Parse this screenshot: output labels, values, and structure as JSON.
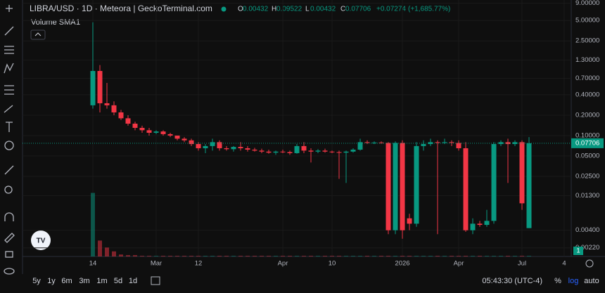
{
  "chart_data": {
    "type": "candlestick",
    "title": "LIBRA/USD · 1D · Meteora | GeckoTerminal.com",
    "ohlc_letters": [
      "O",
      "H",
      "L",
      "C"
    ],
    "ohlc_values": [
      0.00432,
      0.09522,
      0.00432,
      0.07706
    ],
    "change": {
      "value": 0.07274,
      "label": "+0.07274"
    },
    "change_pct": {
      "value": 1685.77,
      "label": "(+1,685.77%)"
    },
    "volume_title": "Volume SMA",
    "volume_param": 1,
    "last_price": 0.07706,
    "log": true,
    "grid": true,
    "up_color": "#089981",
    "down_color": "#f23645",
    "ylim": [
      0.00164,
      10.05
    ],
    "yticks": [
      {
        "value": 9,
        "label": "9.00000"
      },
      {
        "value": 5,
        "label": "5.00000"
      },
      {
        "value": 2.5,
        "label": "2.50000"
      },
      {
        "value": 1.3,
        "label": "1.30000"
      },
      {
        "value": 0.7,
        "label": "0.70000"
      },
      {
        "value": 0.4,
        "label": "0.40000"
      },
      {
        "value": 0.2,
        "label": "0.20000"
      },
      {
        "value": 0.1,
        "label": "0.10000"
      },
      {
        "value": 0.05,
        "label": "0.05000"
      },
      {
        "value": 0.025,
        "label": "0.02500"
      },
      {
        "value": 0.013,
        "label": "0.01300"
      },
      {
        "value": 0.004,
        "label": "0.00400"
      },
      {
        "value": 0.0022,
        "label": "0.00220"
      }
    ],
    "categories": [
      "14",
      null,
      null,
      null,
      null,
      null,
      null,
      null,
      null,
      "Mar",
      null,
      null,
      null,
      null,
      null,
      "12",
      null,
      null,
      null,
      null,
      null,
      null,
      null,
      null,
      null,
      null,
      null,
      "Apr",
      null,
      null,
      null,
      null,
      null,
      null,
      "10",
      null,
      null,
      null,
      null,
      null,
      null,
      null,
      null,
      null,
      "2026",
      null,
      null,
      null,
      null,
      null,
      null,
      null,
      "Apr",
      null,
      null,
      null,
      null,
      null,
      null,
      null,
      null,
      "Jul",
      null,
      null,
      null,
      null,
      null,
      "4"
    ],
    "open": [
      0.28,
      0.9,
      0.3,
      0.28,
      0.22,
      0.18,
      0.15,
      0.13,
      0.12,
      0.11,
      0.115,
      0.105,
      0.1,
      0.09,
      0.085,
      0.075,
      0.065,
      0.07,
      0.08,
      0.065,
      0.063,
      0.068,
      0.065,
      0.062,
      0.06,
      0.058,
      0.056,
      0.058,
      0.057,
      0.055,
      0.07,
      0.06,
      0.058,
      0.06,
      0.058,
      0.057,
      0.056,
      0.058,
      0.062,
      0.08,
      0.078,
      0.079,
      0.078,
      0.004,
      0.078,
      0.006,
      0.005,
      0.07,
      0.075,
      0.08,
      0.078,
      0.08,
      0.078,
      0.065,
      0.004,
      0.005,
      0.0048,
      0.0055,
      0.075,
      0.08,
      0.075,
      0.08,
      0.0043,
      null,
      null,
      null,
      null,
      null
    ],
    "high": [
      4.7,
      1.1,
      0.6,
      0.32,
      0.24,
      0.2,
      0.16,
      0.14,
      0.13,
      0.12,
      0.12,
      0.11,
      0.1,
      0.095,
      0.09,
      0.08,
      0.075,
      0.09,
      0.085,
      0.07,
      0.07,
      0.08,
      0.07,
      0.066,
      0.064,
      0.062,
      0.06,
      0.062,
      0.06,
      0.075,
      0.08,
      0.065,
      0.063,
      0.064,
      0.06,
      0.06,
      0.06,
      0.065,
      0.09,
      0.085,
      0.082,
      0.082,
      0.08,
      0.082,
      0.085,
      0.007,
      0.08,
      0.085,
      0.09,
      0.085,
      0.09,
      0.085,
      0.085,
      0.08,
      0.006,
      0.0055,
      0.008,
      0.08,
      0.085,
      0.09,
      0.085,
      0.085,
      0.095,
      null,
      null,
      null,
      null,
      null
    ],
    "low": [
      0.25,
      0.22,
      0.25,
      0.2,
      0.17,
      0.14,
      0.12,
      0.11,
      0.1,
      0.105,
      0.1,
      0.095,
      0.085,
      0.08,
      0.07,
      0.06,
      0.055,
      0.06,
      0.06,
      0.06,
      0.058,
      0.06,
      0.058,
      0.058,
      0.055,
      0.054,
      0.052,
      0.055,
      0.052,
      0.054,
      0.055,
      0.04,
      0.055,
      0.056,
      0.055,
      0.023,
      0.02,
      0.056,
      0.06,
      0.075,
      0.075,
      0.076,
      0.0035,
      0.0035,
      0.003,
      0.004,
      0.0045,
      0.06,
      0.07,
      0.0035,
      0.075,
      0.07,
      0.06,
      0.0038,
      0.0035,
      0.0045,
      0.0045,
      0.005,
      0.07,
      0.02,
      0.07,
      0.008,
      0.0043,
      null,
      null,
      null,
      null,
      null
    ],
    "close": [
      0.9,
      0.3,
      0.28,
      0.22,
      0.18,
      0.15,
      0.13,
      0.12,
      0.11,
      0.115,
      0.105,
      0.1,
      0.09,
      0.085,
      0.075,
      0.065,
      0.07,
      0.08,
      0.065,
      0.063,
      0.068,
      0.065,
      0.062,
      0.06,
      0.058,
      0.056,
      0.058,
      0.057,
      0.055,
      0.07,
      0.06,
      0.058,
      0.06,
      0.058,
      0.057,
      0.056,
      0.058,
      0.062,
      0.08,
      0.078,
      0.079,
      0.078,
      0.004,
      0.078,
      0.004,
      0.005,
      0.07,
      0.075,
      0.08,
      0.078,
      0.08,
      0.078,
      0.065,
      0.004,
      0.005,
      0.0048,
      0.0055,
      0.075,
      0.08,
      0.075,
      0.08,
      0.01,
      0.07706,
      null,
      null,
      null,
      null,
      null
    ],
    "volume": [
      100,
      25,
      14,
      8,
      3,
      2,
      2,
      1,
      1,
      1,
      1,
      1,
      1,
      1,
      1,
      1,
      1,
      1,
      1,
      1,
      1,
      1,
      1,
      1,
      1,
      1,
      1,
      1,
      1,
      1,
      1,
      1,
      1,
      1,
      1,
      1,
      1,
      1,
      1,
      1,
      1,
      1,
      1,
      1,
      1,
      1,
      1,
      1,
      1,
      1,
      1,
      1,
      1,
      1,
      1,
      1,
      1,
      1,
      1,
      1,
      1,
      1,
      1,
      null,
      null,
      null,
      null,
      null
    ],
    "vlim": [
      0,
      105
    ],
    "volume_badge": "1"
  },
  "toolbar": {
    "ranges": [
      "5y",
      "1y",
      "6m",
      "3m",
      "1m",
      "5d",
      "1d"
    ],
    "time": "05:43:30 (UTC-4)",
    "percent": "%",
    "log_label": "log",
    "auto_label": "auto"
  }
}
